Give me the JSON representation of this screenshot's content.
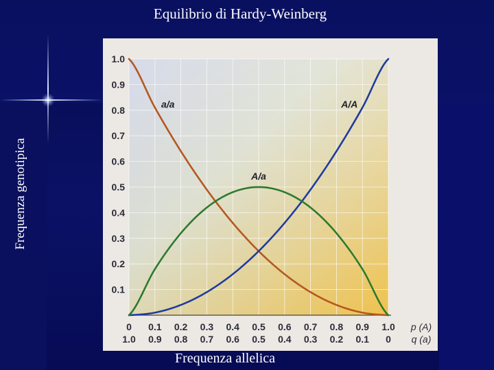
{
  "slide": {
    "title": "Equilibrio di Hardy-Weinberg",
    "ylabel": "Frequenza genotipica",
    "xlabel": "Frequenza allelica"
  },
  "chart_data": {
    "type": "line",
    "title": "Equilibrio di Hardy-Weinberg",
    "xlabel": "Frequenza allelica",
    "ylabel": "Frequenza genotipica",
    "xlim": [
      0,
      1
    ],
    "ylim": [
      0,
      1
    ],
    "grid": true,
    "x_ticks": [
      "0",
      "0.1",
      "0.2",
      "0.3",
      "0.4",
      "0.5",
      "0.6",
      "0.7",
      "0.8",
      "0.9",
      "1.0"
    ],
    "q_ticks": [
      "1.0",
      "0.9",
      "0.8",
      "0.7",
      "0.6",
      "0.5",
      "0.4",
      "0.3",
      "0.2",
      "0.1",
      "0"
    ],
    "y_ticks": [
      "0.1",
      "0.2",
      "0.3",
      "0.4",
      "0.5",
      "0.6",
      "0.7",
      "0.8",
      "0.9",
      "1.0"
    ],
    "p_label": "p (A)",
    "q_label": "q (a)",
    "x": [
      0,
      0.1,
      0.2,
      0.3,
      0.4,
      0.5,
      0.6,
      0.7,
      0.8,
      0.9,
      1.0
    ],
    "series": [
      {
        "name": "a/a",
        "color": "#b5581f",
        "values": [
          1.0,
          0.81,
          0.64,
          0.49,
          0.36,
          0.25,
          0.16,
          0.09,
          0.04,
          0.01,
          0.0
        ]
      },
      {
        "name": "A/A",
        "color": "#1f3c9e",
        "values": [
          0.0,
          0.01,
          0.04,
          0.09,
          0.16,
          0.25,
          0.36,
          0.49,
          0.64,
          0.81,
          1.0
        ]
      },
      {
        "name": "A/a",
        "color": "#2d7a2e",
        "values": [
          0.0,
          0.18,
          0.32,
          0.42,
          0.48,
          0.5,
          0.48,
          0.42,
          0.32,
          0.18,
          0.0
        ]
      }
    ]
  }
}
